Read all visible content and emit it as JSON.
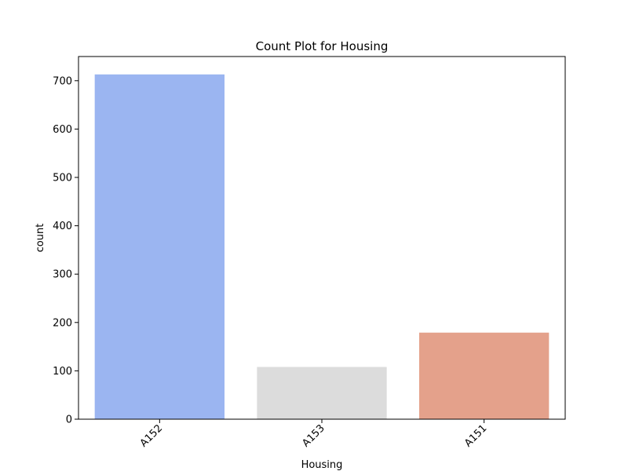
{
  "chart_data": {
    "type": "bar",
    "title": "Count Plot for Housing",
    "xlabel": "Housing",
    "ylabel": "count",
    "categories": [
      "A152",
      "A153",
      "A151"
    ],
    "values": [
      713,
      108,
      179
    ],
    "colors": [
      "#9bb5f1",
      "#dcdcdc",
      "#e4a18b"
    ],
    "ylim": [
      0,
      750
    ],
    "yticks": [
      0,
      100,
      200,
      300,
      400,
      500,
      600,
      700
    ],
    "xtick_rotation_deg": 45,
    "grid": false,
    "legend": "none"
  }
}
